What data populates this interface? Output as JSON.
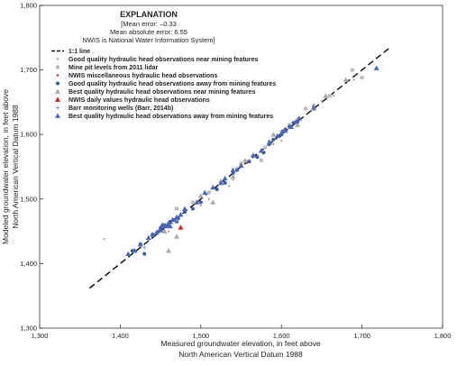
{
  "chart_data": {
    "type": "scatter",
    "xlabel_lines": [
      "Measured groundwater elevation, in feet above",
      "North American Vertical Datum 1988"
    ],
    "ylabel_lines": [
      "Modeled groundwater elevation, in feet above",
      "North American Vertical Datum 1988"
    ],
    "xlim": [
      1300,
      1800
    ],
    "ylim": [
      1300,
      1800
    ],
    "x_ticks": [
      1300,
      1400,
      1500,
      1600,
      1700,
      1800
    ],
    "y_ticks": [
      1300,
      1400,
      1500,
      1600,
      1700,
      1800
    ],
    "x_tick_labels": [
      "1,300",
      "1,400",
      "1,500",
      "1,600",
      "1,700",
      "1,800"
    ],
    "y_tick_labels": [
      "1,300",
      "1,400",
      "1,500",
      "1,600",
      "1,700",
      "1,800"
    ],
    "grid": false,
    "legend_position": "top-left",
    "explanation": {
      "title": "EXPLANATION",
      "lines": [
        "[Mean error: –0.33",
        "Mean absolute error: 6.55",
        "NWIS is National Water Information System]"
      ]
    },
    "one_to_one_line": {
      "label": "1:1 line",
      "x": [
        1362,
        1735
      ],
      "y": [
        1362,
        1735
      ]
    },
    "series": [
      {
        "name": "Good quality hydraulic head observations near mining features",
        "marker": "dot",
        "color": "#aaaaaa",
        "x": [
          1380,
          1465,
          1510,
          1535,
          1560,
          1590,
          1620,
          1650,
          1665,
          1690,
          1460,
          1500,
          1540,
          1600
        ],
        "y": [
          1438,
          1462,
          1500,
          1520,
          1560,
          1585,
          1625,
          1652,
          1660,
          1685,
          1450,
          1490,
          1530,
          1590
        ]
      },
      {
        "name": "Mine pit levels from 2011 lidar",
        "marker": "square",
        "color": "#bbbbbb",
        "x": [
          1470,
          1510,
          1550,
          1580,
          1610,
          1640,
          1660,
          1688,
          1700,
          1490,
          1575,
          1630
        ],
        "y": [
          1485,
          1510,
          1555,
          1580,
          1615,
          1645,
          1660,
          1700,
          1688,
          1495,
          1560,
          1640
        ]
      },
      {
        "name": "NWIS miscellaneous hydraulic head observations",
        "marker": "dot",
        "color": "#cc2222",
        "x": [
          1475,
          1557
        ],
        "y": [
          1455,
          1556
        ]
      },
      {
        "name": "Good quality hydraulic head observations away from mining features",
        "marker": "circle",
        "color": "#3a57a8",
        "x": [
          1415,
          1425,
          1440,
          1450,
          1455,
          1460,
          1462,
          1468,
          1470,
          1480,
          1490,
          1500,
          1520,
          1530,
          1545,
          1560,
          1570,
          1585,
          1590,
          1600,
          1602,
          1605,
          1610,
          1615,
          1620,
          1430,
          1448,
          1458,
          1472,
          1540,
          1578,
          1598
        ],
        "y": [
          1420,
          1430,
          1445,
          1455,
          1460,
          1462,
          1465,
          1468,
          1465,
          1480,
          1485,
          1495,
          1515,
          1525,
          1545,
          1558,
          1565,
          1585,
          1592,
          1600,
          1605,
          1608,
          1612,
          1618,
          1620,
          1415,
          1450,
          1458,
          1470,
          1540,
          1572,
          1598
        ]
      },
      {
        "name": "Best quality hydraulic head observations near mining features",
        "marker": "triangle",
        "color": "#aaaaaa",
        "x": [
          1455,
          1470,
          1500,
          1515,
          1525,
          1540,
          1555,
          1575,
          1590,
          1620,
          1640,
          1655,
          1680,
          1460
        ],
        "y": [
          1450,
          1442,
          1505,
          1495,
          1528,
          1535,
          1560,
          1575,
          1600,
          1615,
          1640,
          1660,
          1685,
          1420
        ]
      },
      {
        "name": "NWIS daily values hydraulic head observations",
        "marker": "triangle",
        "color": "#dd2222",
        "x": [
          1475
        ],
        "y": [
          1456
        ]
      },
      {
        "name": "Barr monitoring wells (Barr, 2014b)",
        "marker": "plus",
        "color": "#8a9ad0",
        "x": [
          1430,
          1470,
          1545,
          1585,
          1600
        ],
        "y": [
          1425,
          1467,
          1548,
          1590,
          1605
        ]
      },
      {
        "name": "Best quality hydraulic head observations away from mining features",
        "marker": "triangle",
        "color": "#4a68b8",
        "x": [
          1410,
          1418,
          1425,
          1435,
          1440,
          1445,
          1450,
          1455,
          1460,
          1465,
          1470,
          1475,
          1480,
          1495,
          1505,
          1515,
          1525,
          1530,
          1540,
          1550,
          1565,
          1575,
          1585,
          1595,
          1600,
          1605,
          1612,
          1618,
          1622,
          1640,
          1718,
          1462,
          1452
        ],
        "y": [
          1415,
          1420,
          1430,
          1440,
          1445,
          1448,
          1452,
          1458,
          1462,
          1468,
          1472,
          1476,
          1485,
          1495,
          1510,
          1518,
          1525,
          1532,
          1545,
          1552,
          1568,
          1575,
          1588,
          1598,
          1602,
          1606,
          1612,
          1620,
          1625,
          1642,
          1703,
          1458,
          1460
        ]
      }
    ]
  }
}
